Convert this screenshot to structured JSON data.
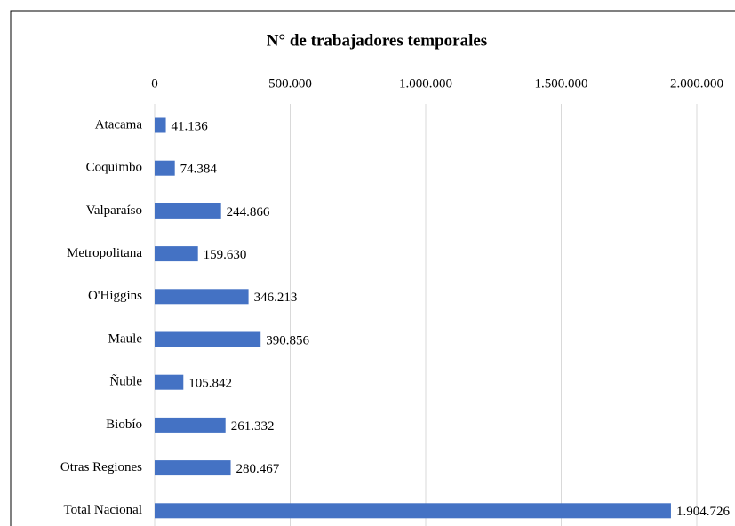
{
  "chart_data": {
    "type": "bar",
    "orientation": "horizontal",
    "title": "N° de trabajadores temporales",
    "categories": [
      "Atacama",
      "Coquimbo",
      "Valparaíso",
      "Metropolitana",
      "O'Higgins",
      "Maule",
      "Ñuble",
      "Biobío",
      "Otras Regiones",
      "Total Nacional"
    ],
    "values": [
      41136,
      74384,
      244866,
      159630,
      346213,
      390856,
      105842,
      261332,
      280467,
      1904726
    ],
    "value_labels": [
      "41.136",
      "74.384",
      "244.866",
      "159.630",
      "346.213",
      "390.856",
      "105.842",
      "261.332",
      "280.467",
      "1.904.726"
    ],
    "color": "#4472c4",
    "xlim": [
      0,
      2000000
    ],
    "xticks": [
      0,
      {
        "value": 500000,
        "label": "500.000"
      },
      {
        "value": 1000000,
        "label": "1.000.000"
      },
      {
        "value": 1500000,
        "label": "1.500.000"
      },
      {
        "value": 2000000,
        "label": "2.000.000"
      }
    ],
    "grid": true
  }
}
